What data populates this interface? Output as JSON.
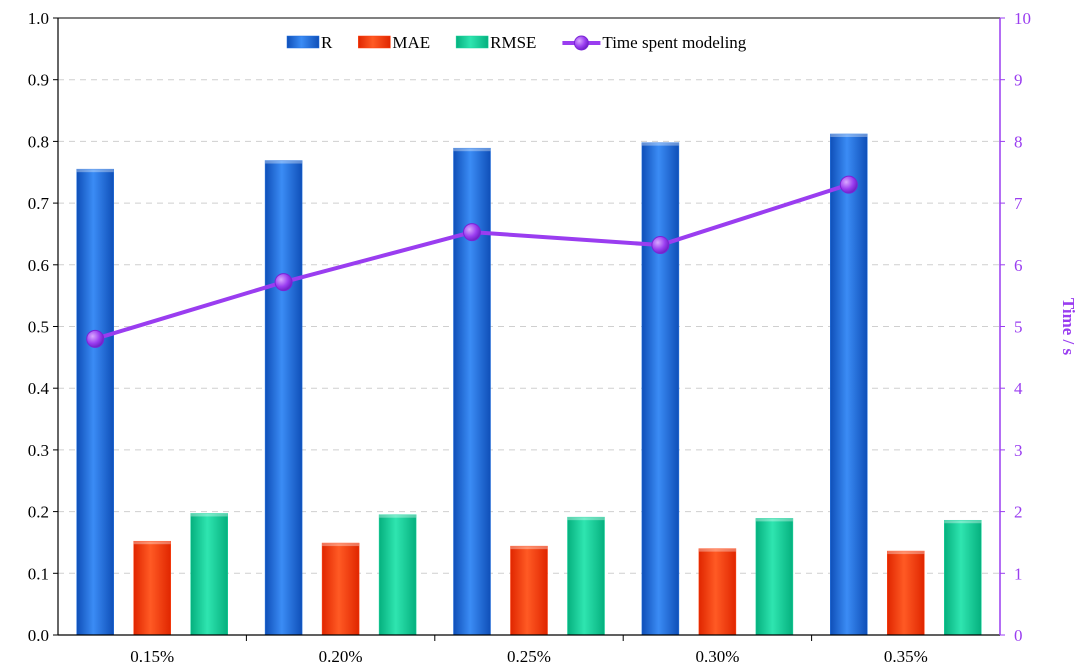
{
  "chart_data": {
    "type": "bar",
    "title": "",
    "xlabel": "",
    "ylabel": "",
    "ylabel_right": "Time / s",
    "categories": [
      "0.15%",
      "0.20%",
      "0.25%",
      "0.30%",
      "0.35%"
    ],
    "ylim": [
      0,
      1.0
    ],
    "ylim_right": [
      0,
      10
    ],
    "yticks": [
      "0.0",
      "0.1",
      "0.2",
      "0.3",
      "0.4",
      "0.5",
      "0.6",
      "0.7",
      "0.8",
      "0.9",
      "1.0"
    ],
    "yticks_right": [
      "0",
      "1",
      "2",
      "3",
      "4",
      "5",
      "6",
      "7",
      "8",
      "9",
      "10"
    ],
    "grid": "horizontal-dashed",
    "legend_position": "top-center",
    "series": [
      {
        "name": "R",
        "kind": "bar",
        "axis": "left",
        "color": "#1f6fe0",
        "values": [
          0.755,
          0.769,
          0.789,
          0.798,
          0.812
        ]
      },
      {
        "name": "MAE",
        "kind": "bar",
        "axis": "left",
        "color": "#ff3d0a",
        "values": [
          0.152,
          0.149,
          0.144,
          0.14,
          0.136
        ]
      },
      {
        "name": "RMSE",
        "kind": "bar",
        "axis": "left",
        "color": "#12d49a",
        "values": [
          0.197,
          0.195,
          0.191,
          0.189,
          0.186
        ]
      },
      {
        "name": "Time spent modeling",
        "kind": "line",
        "axis": "right",
        "color": "#9a3df0",
        "values": [
          4.8,
          5.72,
          6.53,
          6.32,
          7.3
        ]
      }
    ],
    "right_axis_color": "#9a3df0"
  }
}
